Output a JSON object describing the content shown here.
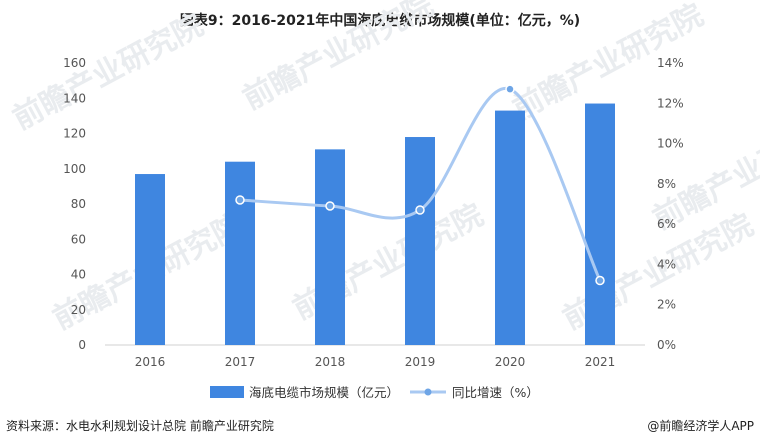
{
  "title": "图表9：2016-2021年中国海底电缆市场规模(单位：亿元，%)",
  "footer": {
    "source": "资料来源：水电水利规划设计总院 前瞻产业研究院",
    "brand": "@前瞻经济学人APP"
  },
  "watermark": "前瞻产业研究院",
  "colors": {
    "bar": "#3f86e0",
    "line": "#a9c9f2",
    "marker": "#6ea5e6"
  },
  "chart_data": {
    "type": "bar",
    "categories": [
      "2016",
      "2017",
      "2018",
      "2019",
      "2020",
      "2021"
    ],
    "series": [
      {
        "name": "海底电缆市场规模（亿元）",
        "type": "bar",
        "axis": "left",
        "values": [
          97,
          104,
          111,
          118,
          133,
          137
        ]
      },
      {
        "name": "同比增速（%）",
        "type": "line",
        "axis": "right",
        "values": [
          null,
          7.2,
          6.9,
          6.7,
          12.7,
          3.2
        ]
      }
    ],
    "ylim_left": [
      0,
      160
    ],
    "yticks_left": [
      "0",
      "20",
      "40",
      "60",
      "80",
      "100",
      "120",
      "140",
      "160"
    ],
    "ylim_right": [
      0,
      14
    ],
    "yticks_right": [
      "0%",
      "2%",
      "4%",
      "6%",
      "8%",
      "10%",
      "12%",
      "14%"
    ],
    "grid": false,
    "legend_position": "bottom"
  }
}
